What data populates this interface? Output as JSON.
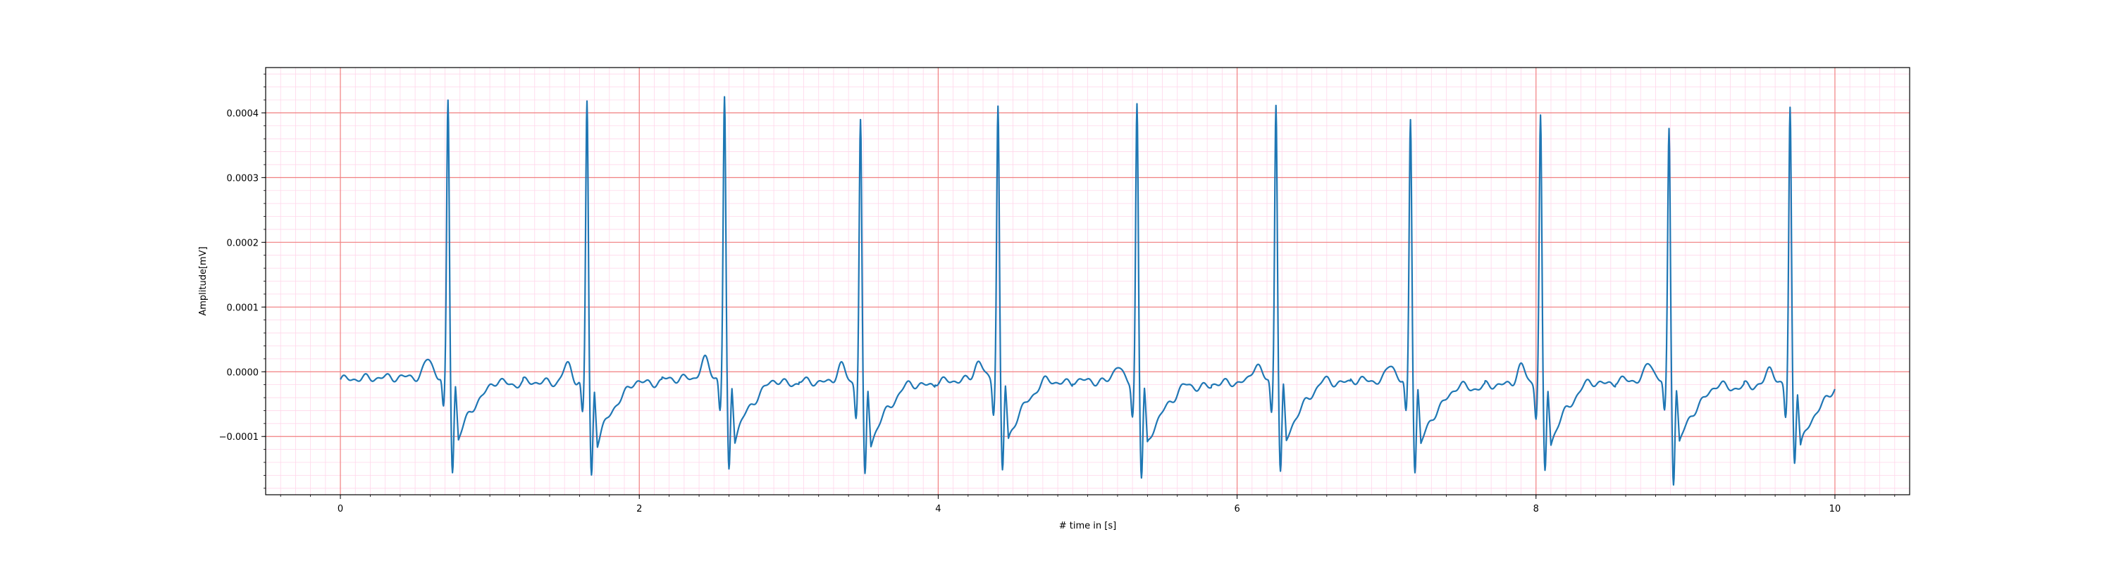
{
  "chart_data": {
    "type": "line",
    "title": "",
    "xlabel": "# time in [s]",
    "ylabel": "Amplitude[mV]",
    "xlim": [
      -0.5,
      10.5
    ],
    "ylim": [
      -0.00019,
      0.00047
    ],
    "x_ticks": [
      0,
      2,
      4,
      6,
      8,
      10
    ],
    "x_tick_labels": [
      "0",
      "2",
      "4",
      "6",
      "8",
      "10"
    ],
    "y_ticks": [
      -0.0001,
      0.0,
      0.0001,
      0.0002,
      0.0003,
      0.0004
    ],
    "y_tick_labels": [
      "−0.0001",
      "0.0000",
      "0.0001",
      "0.0002",
      "0.0003",
      "0.0004"
    ],
    "grid": true,
    "grid_major_color": "#f08080",
    "grid_minor_color": "#ffd6ea",
    "line_color": "#1f77b4",
    "series": [
      {
        "beats": [
          {
            "r_time": 0.72,
            "r_peak": 0.000432,
            "s_min": -0.000143
          },
          {
            "r_time": 1.65,
            "r_peak": 0.00044,
            "s_min": -0.000145
          },
          {
            "r_time": 2.57,
            "r_peak": 0.000437,
            "s_min": -0.000145
          },
          {
            "r_time": 3.48,
            "r_peak": 0.000413,
            "s_min": -0.000146
          },
          {
            "r_time": 4.4,
            "r_peak": 0.000427,
            "s_min": -0.000144
          },
          {
            "r_time": 5.33,
            "r_peak": 0.000439,
            "s_min": -0.000146
          },
          {
            "r_time": 6.26,
            "r_peak": 0.000437,
            "s_min": -0.000144
          },
          {
            "r_time": 7.16,
            "r_peak": 0.000415,
            "s_min": -0.000135
          },
          {
            "r_time": 8.03,
            "r_peak": 0.000417,
            "s_min": -0.00014
          },
          {
            "r_time": 8.89,
            "r_peak": 0.000395,
            "s_min": -0.000154
          },
          {
            "r_time": 9.7,
            "r_peak": 0.000435,
            "s_min": -0.000116
          }
        ],
        "x_start": 0.0,
        "x_end": 10.0,
        "y_start": -1.2e-05,
        "y_end": -1.8e-05
      }
    ]
  }
}
